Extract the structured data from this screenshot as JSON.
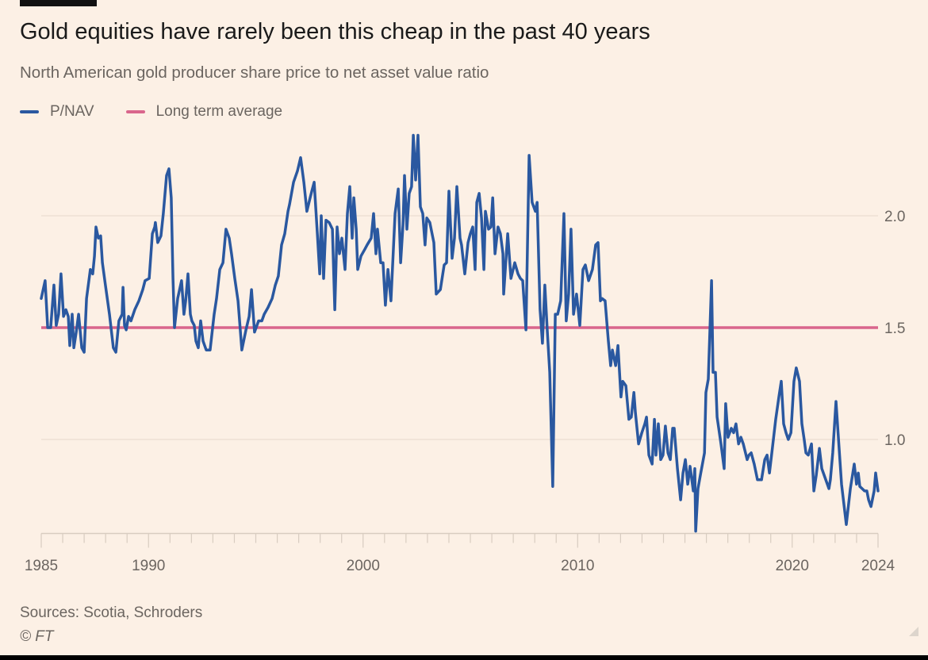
{
  "header": {
    "title": "Gold equities have rarely been this cheap in the past 40 years",
    "subtitle": "North American gold producer share price to net asset value ratio"
  },
  "legend": [
    {
      "label": "P/NAV",
      "color": "#2a58a0"
    },
    {
      "label": "Long term average",
      "color": "#d9668c"
    }
  ],
  "footer": {
    "sources": "Sources: Scotia, Schroders",
    "copyright": "© FT"
  },
  "chart_data": {
    "type": "line",
    "title": "Gold equities have rarely been this cheap in the past 40 years",
    "subtitle": "North American gold producer share price to net asset value ratio",
    "xlabel": "",
    "ylabel": "",
    "xlim": [
      1985,
      2024
    ],
    "ylim": [
      0.58,
      2.4
    ],
    "x_ticks": [
      "1985",
      "1990",
      "2000",
      "2010",
      "2020",
      "2024"
    ],
    "x_tick_values": [
      1985,
      1990,
      2000,
      2010,
      2020,
      2024
    ],
    "y_ticks": [
      "1.0",
      "1.5",
      "2.0"
    ],
    "y_tick_values": [
      1.0,
      1.5,
      2.0
    ],
    "grid": "horizontal",
    "legend_placement": "top-left",
    "reference_line": {
      "name": "Long term average",
      "value": 1.5
    },
    "series": [
      {
        "name": "P/NAV",
        "x": [
          1985.0,
          1985.18,
          1985.3,
          1985.44,
          1985.59,
          1985.7,
          1985.81,
          1985.92,
          1986.04,
          1986.15,
          1986.26,
          1986.33,
          1986.44,
          1986.52,
          1986.63,
          1986.74,
          1986.89,
          1987.0,
          1987.11,
          1987.29,
          1987.4,
          1987.48,
          1987.55,
          1987.66,
          1987.77,
          1987.85,
          1987.99,
          1988.18,
          1988.36,
          1988.48,
          1988.62,
          1988.77,
          1988.81,
          1988.88,
          1988.96,
          1989.07,
          1989.18,
          1989.36,
          1989.55,
          1989.73,
          1989.84,
          1990.03,
          1990.18,
          1990.29,
          1990.32,
          1990.43,
          1990.58,
          1990.69,
          1990.84,
          1990.95,
          1991.06,
          1991.14,
          1991.21,
          1991.36,
          1991.54,
          1991.65,
          1991.73,
          1991.84,
          1991.95,
          1992.02,
          1992.13,
          1992.21,
          1992.32,
          1992.43,
          1992.54,
          1992.69,
          1992.87,
          1993.06,
          1993.17,
          1993.32,
          1993.47,
          1993.61,
          1993.76,
          1993.87,
          1994.02,
          1994.17,
          1994.35,
          1994.54,
          1994.69,
          1994.8,
          1994.94,
          1995.13,
          1995.28,
          1995.39,
          1995.57,
          1995.76,
          1995.91,
          1996.05,
          1996.2,
          1996.35,
          1996.5,
          1996.57,
          1996.76,
          1996.94,
          1997.09,
          1997.24,
          1997.38,
          1997.53,
          1997.61,
          1997.72,
          1997.87,
          1997.98,
          1998.05,
          1998.16,
          1998.27,
          1998.42,
          1998.57,
          1998.68,
          1998.79,
          1998.9,
          1999.01,
          1999.16,
          1999.27,
          1999.38,
          1999.49,
          1999.57,
          1999.68,
          1999.75,
          1999.9,
          2000.08,
          2000.19,
          2000.38,
          2000.49,
          2000.6,
          2000.67,
          2000.82,
          2000.93,
          2001.04,
          2001.16,
          2001.3,
          2001.49,
          2001.64,
          2001.75,
          2001.86,
          2001.93,
          2002.04,
          2002.15,
          2002.26,
          2002.34,
          2002.45,
          2002.56,
          2002.67,
          2002.78,
          2002.89,
          2002.97,
          2003.11,
          2003.3,
          2003.41,
          2003.6,
          2003.78,
          2003.89,
          2004.0,
          2004.15,
          2004.26,
          2004.37,
          2004.52,
          2004.59,
          2004.74,
          2004.89,
          2005.0,
          2005.11,
          2005.22,
          2005.3,
          2005.41,
          2005.52,
          2005.63,
          2005.7,
          2005.85,
          2005.96,
          2006.04,
          2006.15,
          2006.29,
          2006.4,
          2006.52,
          2006.55,
          2006.74,
          2006.89,
          2007.07,
          2007.22,
          2007.33,
          2007.44,
          2007.59,
          2007.74,
          2007.88,
          2008.03,
          2008.11,
          2008.25,
          2008.36,
          2008.47,
          2008.59,
          2008.7,
          2008.84,
          2008.96,
          2009.07,
          2009.21,
          2009.36,
          2009.47,
          2009.58,
          2009.69,
          2009.81,
          2009.95,
          2010.1,
          2010.25,
          2010.36,
          2010.51,
          2010.69,
          2010.84,
          2010.95,
          2011.06,
          2011.14,
          2011.28,
          2011.43,
          2011.54,
          2011.62,
          2011.77,
          2011.88,
          2012.02,
          2012.1,
          2012.25,
          2012.39,
          2012.5,
          2012.62,
          2012.69,
          2012.84,
          2012.99,
          2013.13,
          2013.21,
          2013.32,
          2013.47,
          2013.58,
          2013.65,
          2013.76,
          2013.87,
          2013.98,
          2014.09,
          2014.21,
          2014.32,
          2014.43,
          2014.5,
          2014.65,
          2014.8,
          2014.91,
          2015.02,
          2015.13,
          2015.24,
          2015.39,
          2015.46,
          2015.5,
          2015.61,
          2015.72,
          2015.91,
          2015.98,
          2016.09,
          2016.24,
          2016.31,
          2016.42,
          2016.5,
          2016.68,
          2016.83,
          2016.9,
          2017.01,
          2017.16,
          2017.27,
          2017.38,
          2017.5,
          2017.61,
          2017.72,
          2017.9,
          2017.98,
          2018.09,
          2018.23,
          2018.38,
          2018.57,
          2018.72,
          2018.83,
          2018.94,
          2019.05,
          2019.23,
          2019.38,
          2019.49,
          2019.6,
          2019.71,
          2019.82,
          2019.94,
          2020.08,
          2020.19,
          2020.34,
          2020.45,
          2020.56,
          2020.64,
          2020.75,
          2020.9,
          2021.01,
          2021.12,
          2021.27,
          2021.38,
          2021.49,
          2021.71,
          2021.78,
          2021.89,
          2022.04,
          2022.15,
          2022.3,
          2022.52,
          2022.71,
          2022.89,
          2023.0,
          2023.08,
          2023.15,
          2023.26,
          2023.37,
          2023.48,
          2023.56,
          2023.67,
          2023.82,
          2023.89,
          2024.0
        ],
        "y": [
          1.63,
          1.71,
          1.5,
          1.5,
          1.69,
          1.51,
          1.56,
          1.74,
          1.55,
          1.58,
          1.55,
          1.42,
          1.56,
          1.41,
          1.48,
          1.56,
          1.41,
          1.39,
          1.63,
          1.76,
          1.74,
          1.82,
          1.95,
          1.9,
          1.91,
          1.79,
          1.69,
          1.56,
          1.41,
          1.39,
          1.53,
          1.56,
          1.68,
          1.51,
          1.49,
          1.55,
          1.53,
          1.58,
          1.62,
          1.67,
          1.71,
          1.72,
          1.92,
          1.95,
          1.97,
          1.88,
          1.91,
          2.01,
          2.18,
          2.21,
          2.08,
          1.72,
          1.5,
          1.63,
          1.71,
          1.56,
          1.62,
          1.74,
          1.56,
          1.53,
          1.51,
          1.44,
          1.41,
          1.53,
          1.44,
          1.4,
          1.4,
          1.56,
          1.63,
          1.76,
          1.79,
          1.94,
          1.9,
          1.83,
          1.72,
          1.62,
          1.4,
          1.49,
          1.55,
          1.67,
          1.48,
          1.53,
          1.53,
          1.56,
          1.59,
          1.63,
          1.69,
          1.73,
          1.87,
          1.92,
          2.02,
          2.05,
          2.15,
          2.2,
          2.26,
          2.15,
          2.02,
          2.08,
          2.11,
          2.15,
          1.92,
          1.74,
          2.0,
          1.72,
          1.98,
          1.97,
          1.94,
          1.58,
          1.95,
          1.83,
          1.9,
          1.76,
          2.01,
          2.13,
          1.9,
          2.08,
          1.94,
          1.76,
          1.82,
          1.85,
          1.87,
          1.9,
          2.01,
          1.83,
          1.94,
          1.79,
          1.79,
          1.6,
          1.76,
          1.62,
          2.01,
          2.12,
          1.79,
          1.96,
          2.18,
          1.94,
          2.1,
          2.13,
          2.36,
          2.16,
          2.36,
          2.04,
          2.01,
          1.87,
          1.99,
          1.97,
          1.88,
          1.65,
          1.67,
          1.78,
          1.79,
          2.11,
          1.81,
          1.9,
          2.13,
          1.9,
          1.87,
          1.74,
          1.88,
          1.92,
          1.95,
          1.76,
          2.06,
          2.1,
          1.99,
          1.76,
          2.02,
          1.94,
          1.95,
          2.08,
          1.83,
          1.95,
          1.92,
          1.83,
          1.65,
          1.92,
          1.72,
          1.79,
          1.74,
          1.72,
          1.71,
          1.49,
          2.27,
          2.06,
          2.02,
          2.06,
          1.58,
          1.43,
          1.69,
          1.48,
          1.3,
          0.79,
          1.56,
          1.56,
          1.62,
          2.01,
          1.53,
          1.65,
          1.94,
          1.56,
          1.65,
          1.51,
          1.76,
          1.78,
          1.71,
          1.76,
          1.87,
          1.88,
          1.62,
          1.63,
          1.62,
          1.44,
          1.33,
          1.4,
          1.33,
          1.42,
          1.19,
          1.26,
          1.24,
          1.09,
          1.1,
          1.21,
          1.12,
          0.98,
          1.03,
          1.07,
          1.1,
          0.93,
          0.89,
          1.09,
          0.93,
          1.07,
          0.91,
          0.93,
          1.06,
          0.94,
          0.91,
          1.05,
          1.05,
          0.87,
          0.73,
          0.85,
          0.91,
          0.8,
          0.88,
          0.77,
          0.87,
          0.59,
          0.78,
          0.84,
          0.94,
          1.21,
          1.27,
          1.71,
          1.3,
          1.3,
          1.1,
          0.98,
          0.87,
          1.16,
          1.01,
          1.05,
          1.03,
          1.07,
          0.98,
          1.01,
          0.98,
          0.91,
          0.93,
          0.94,
          0.89,
          0.82,
          0.82,
          0.91,
          0.93,
          0.85,
          0.94,
          1.09,
          1.19,
          1.26,
          1.07,
          1.03,
          1.0,
          1.03,
          1.26,
          1.32,
          1.26,
          1.07,
          1.0,
          0.94,
          0.93,
          0.98,
          0.77,
          0.84,
          0.96,
          0.87,
          0.84,
          0.78,
          0.82,
          0.94,
          1.17,
          1.01,
          0.8,
          0.62,
          0.78,
          0.89,
          0.8,
          0.85,
          0.79,
          0.78,
          0.77,
          0.77,
          0.73,
          0.7,
          0.77,
          0.85,
          0.77
        ]
      }
    ]
  }
}
